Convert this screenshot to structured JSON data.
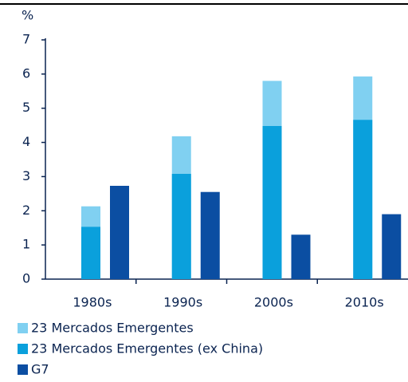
{
  "chart_data": {
    "type": "bar",
    "y_unit_label": "%",
    "categories": [
      "1980s",
      "1990s",
      "2000s",
      "2010s"
    ],
    "series": [
      {
        "name": "23 Mercados Emergentes",
        "color": "#80d0f1",
        "values": [
          2.13,
          4.18,
          5.8,
          5.93
        ]
      },
      {
        "name": "23 Mercados Emergentes (ex China)",
        "color": "#0aa0dc",
        "values": [
          1.53,
          3.08,
          4.48,
          4.66
        ]
      },
      {
        "name": "G7",
        "color": "#0b4ea2",
        "values": [
          2.73,
          2.55,
          1.3,
          1.9
        ]
      }
    ],
    "ylim": [
      0,
      7
    ],
    "yticks": [
      0,
      1,
      2,
      3,
      4,
      5,
      6,
      7
    ]
  }
}
